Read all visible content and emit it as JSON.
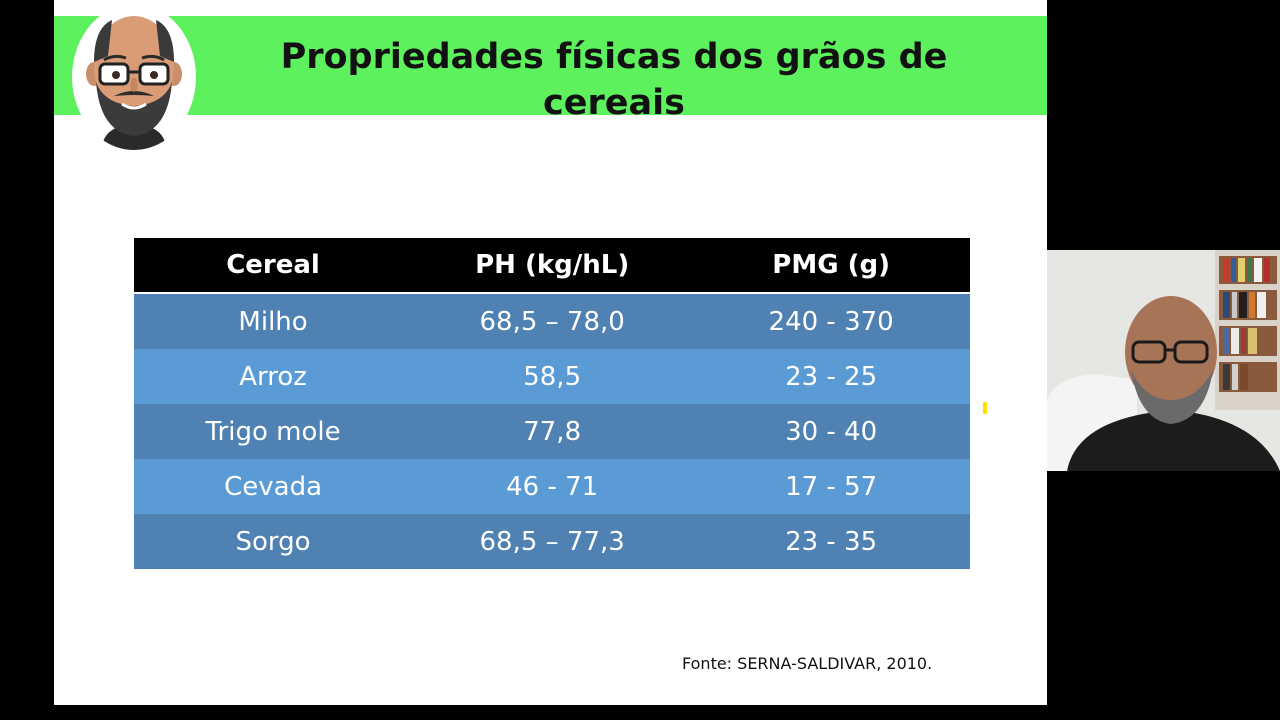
{
  "slide": {
    "title": "Propriedades físicas dos grãos de cereais",
    "source": "Fonte: SERNA-SALDIVAR, 2010."
  },
  "table": {
    "headers": [
      "Cereal",
      "PH (kg/hL)",
      "PMG (g)"
    ],
    "rows": [
      [
        "Milho",
        "68,5 – 78,0",
        "240 - 370"
      ],
      [
        "Arroz",
        "58,5",
        "23 - 25"
      ],
      [
        "Trigo mole",
        "77,8",
        "30 - 40"
      ],
      [
        "Cevada",
        "46 - 71",
        "17 - 57"
      ],
      [
        "Sorgo",
        "68,5 – 77,3",
        "23 - 35"
      ]
    ]
  },
  "colors": {
    "title_bar": "#5ef15e",
    "header_bg": "#000000",
    "row_dark": "#4f81b2",
    "row_light": "#5b9bd5",
    "outer_bg": "#000000"
  },
  "icons": {
    "avatar": "cartoon-man-avatar-icon",
    "webcam": "presenter-webcam-feed"
  }
}
